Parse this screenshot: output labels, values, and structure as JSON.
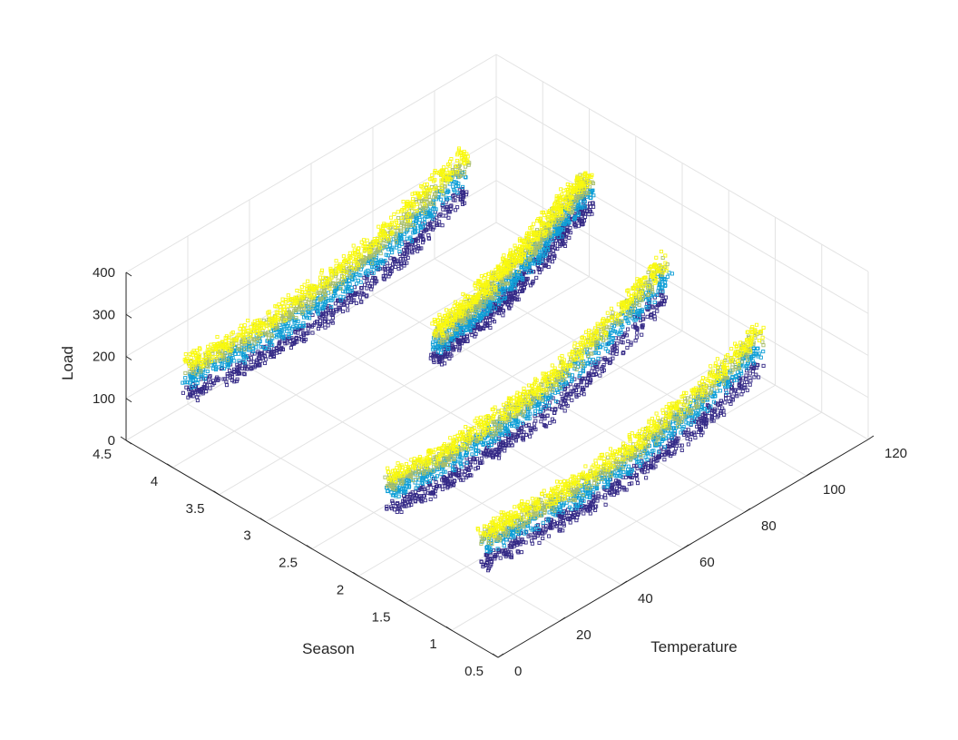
{
  "chart_data": {
    "type": "scatter",
    "projection": "3d",
    "title": "",
    "xlabel": "Season",
    "ylabel": "Temperature",
    "zlabel": "Load",
    "xlim": [
      0.5,
      4.5
    ],
    "ylim": [
      0,
      120
    ],
    "zlim": [
      0,
      400
    ],
    "x_ticks": [
      "0.5",
      "1",
      "1.5",
      "2",
      "2.5",
      "3",
      "3.5",
      "4",
      "4.5"
    ],
    "y_ticks": [
      "0",
      "20",
      "40",
      "60",
      "80",
      "100",
      "120"
    ],
    "z_ticks": [
      "0",
      "100",
      "200",
      "300",
      "400"
    ],
    "grid": true,
    "legend": "none",
    "layer_colors": [
      "#352a87",
      "#0f9fd6",
      "#a9be6b",
      "#f9f90e"
    ],
    "clusters": [
      {
        "season": 1,
        "temperature_range": [
          10,
          100
        ],
        "layers": [
          {
            "color": "#352a87",
            "curve": [
              [
                10,
                118
              ],
              [
                40,
                105
              ],
              [
                60,
                112
              ],
              [
                80,
                140
              ],
              [
                100,
                195
              ]
            ]
          },
          {
            "color": "#0f9fd6",
            "curve": [
              [
                10,
                152
              ],
              [
                40,
                140
              ],
              [
                60,
                150
              ],
              [
                80,
                185
              ],
              [
                100,
                240
              ]
            ]
          },
          {
            "color": "#a9be6b",
            "curve": [
              [
                10,
                172
              ],
              [
                40,
                160
              ],
              [
                60,
                172
              ],
              [
                80,
                210
              ],
              [
                100,
                268
              ]
            ]
          },
          {
            "color": "#f9f90e",
            "curve": [
              [
                10,
                188
              ],
              [
                40,
                177
              ],
              [
                60,
                190
              ],
              [
                80,
                228
              ],
              [
                100,
                282
              ]
            ]
          }
        ]
      },
      {
        "season": 2,
        "temperature_range": [
          10,
          100
        ],
        "layers": [
          {
            "color": "#352a87",
            "curve": [
              [
                10,
                115
              ],
              [
                30,
                100
              ],
              [
                60,
                118
              ],
              [
                80,
                165
              ],
              [
                100,
                240
              ]
            ]
          },
          {
            "color": "#0f9fd6",
            "curve": [
              [
                10,
                155
              ],
              [
                30,
                140
              ],
              [
                60,
                160
              ],
              [
                80,
                210
              ],
              [
                100,
                285
              ]
            ]
          },
          {
            "color": "#a9be6b",
            "curve": [
              [
                10,
                175
              ],
              [
                30,
                160
              ],
              [
                60,
                182
              ],
              [
                80,
                238
              ],
              [
                100,
                312
              ]
            ]
          },
          {
            "color": "#f9f90e",
            "curve": [
              [
                10,
                192
              ],
              [
                30,
                178
              ],
              [
                60,
                200
              ],
              [
                80,
                255
              ],
              [
                100,
                325
              ]
            ]
          }
        ]
      },
      {
        "season": 3,
        "temperature_range": [
          55,
          105
        ],
        "layers": [
          {
            "color": "#352a87",
            "curve": [
              [
                55,
                150
              ],
              [
                70,
                170
              ],
              [
                85,
                215
              ],
              [
                100,
                280
              ],
              [
                105,
                305
              ]
            ]
          },
          {
            "color": "#0f9fd6",
            "curve": [
              [
                55,
                175
              ],
              [
                70,
                200
              ],
              [
                85,
                248
              ],
              [
                100,
                312
              ],
              [
                105,
                335
              ]
            ]
          },
          {
            "color": "#a9be6b",
            "curve": [
              [
                55,
                200
              ],
              [
                70,
                228
              ],
              [
                85,
                278
              ],
              [
                100,
                342
              ],
              [
                105,
                362
              ]
            ]
          },
          {
            "color": "#f9f90e",
            "curve": [
              [
                55,
                218
              ],
              [
                70,
                248
              ],
              [
                85,
                298
              ],
              [
                100,
                360
              ],
              [
                105,
                378
              ]
            ]
          }
        ]
      },
      {
        "season": 4,
        "temperature_range": [
          5,
          95
        ],
        "layers": [
          {
            "color": "#352a87",
            "curve": [
              [
                5,
                150
              ],
              [
                30,
                135
              ],
              [
                55,
                148
              ],
              [
                75,
                180
              ],
              [
                95,
                245
              ]
            ]
          },
          {
            "color": "#0f9fd6",
            "curve": [
              [
                5,
                185
              ],
              [
                30,
                172
              ],
              [
                55,
                190
              ],
              [
                75,
                225
              ],
              [
                95,
                290
              ]
            ]
          },
          {
            "color": "#a9be6b",
            "curve": [
              [
                5,
                210
              ],
              [
                30,
                198
              ],
              [
                55,
                218
              ],
              [
                75,
                258
              ],
              [
                95,
                322
              ]
            ]
          },
          {
            "color": "#f9f90e",
            "curve": [
              [
                5,
                228
              ],
              [
                30,
                216
              ],
              [
                55,
                238
              ],
              [
                75,
                278
              ],
              [
                95,
                340
              ]
            ]
          }
        ]
      }
    ]
  }
}
